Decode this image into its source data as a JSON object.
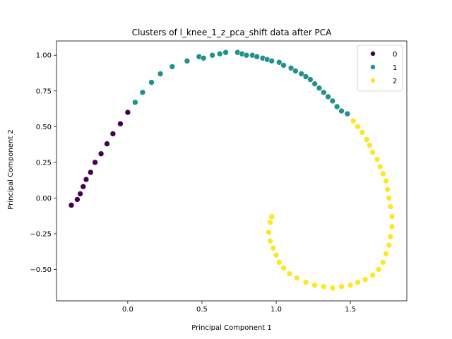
{
  "chart_data": {
    "type": "scatter",
    "title": "Clusters of l_knee_1_z_pca_shift data after PCA",
    "xlabel": "Principal Component 1",
    "ylabel": "Principal Component 2",
    "xlim": [
      -0.48,
      1.88
    ],
    "ylim": [
      -0.72,
      1.1
    ],
    "xticks": [
      0.0,
      0.5,
      1.0,
      1.5
    ],
    "xtick_labels": [
      "0.0",
      "0.5",
      "1.0",
      "1.5"
    ],
    "yticks": [
      -0.5,
      -0.25,
      0.0,
      0.25,
      0.5,
      0.75,
      1.0
    ],
    "ytick_labels": [
      "−0.50",
      "−0.25",
      "0.00",
      "0.25",
      "0.50",
      "0.75",
      "1.00"
    ],
    "grid": false,
    "legend_position": "top-right",
    "series": [
      {
        "name": "0",
        "color": "#440154",
        "points": [
          [
            -0.38,
            -0.05
          ],
          [
            -0.34,
            -0.01
          ],
          [
            -0.32,
            0.03
          ],
          [
            -0.3,
            0.08
          ],
          [
            -0.28,
            0.13
          ],
          [
            -0.25,
            0.18
          ],
          [
            -0.22,
            0.25
          ],
          [
            -0.18,
            0.31
          ],
          [
            -0.14,
            0.38
          ],
          [
            -0.1,
            0.45
          ],
          [
            -0.05,
            0.52
          ],
          [
            0.0,
            0.6
          ]
        ]
      },
      {
        "name": "1",
        "color": "#21918c",
        "points": [
          [
            0.05,
            0.67
          ],
          [
            0.1,
            0.74
          ],
          [
            0.16,
            0.81
          ],
          [
            0.22,
            0.87
          ],
          [
            0.3,
            0.92
          ],
          [
            0.4,
            0.96
          ],
          [
            0.48,
            0.99
          ],
          [
            0.51,
            0.98
          ],
          [
            0.57,
            1.0
          ],
          [
            0.62,
            1.01
          ],
          [
            0.66,
            1.02
          ],
          [
            0.74,
            1.02
          ],
          [
            0.77,
            1.01
          ],
          [
            0.8,
            1.0
          ],
          [
            0.84,
            1.0
          ],
          [
            0.87,
            0.99
          ],
          [
            0.91,
            0.98
          ],
          [
            0.94,
            0.97
          ],
          [
            0.97,
            0.96
          ],
          [
            1.02,
            0.95
          ],
          [
            1.05,
            0.93
          ],
          [
            1.1,
            0.91
          ],
          [
            1.13,
            0.89
          ],
          [
            1.17,
            0.87
          ],
          [
            1.2,
            0.85
          ],
          [
            1.23,
            0.83
          ],
          [
            1.26,
            0.8
          ],
          [
            1.29,
            0.77
          ],
          [
            1.32,
            0.74
          ],
          [
            1.35,
            0.71
          ],
          [
            1.38,
            0.68
          ],
          [
            1.41,
            0.64
          ],
          [
            1.44,
            0.61
          ],
          [
            1.48,
            0.59
          ]
        ]
      },
      {
        "name": "2",
        "color": "#fde725",
        "points": [
          [
            1.52,
            0.54
          ],
          [
            1.55,
            0.5
          ],
          [
            1.58,
            0.46
          ],
          [
            1.61,
            0.41
          ],
          [
            1.63,
            0.37
          ],
          [
            1.65,
            0.32
          ],
          [
            1.68,
            0.27
          ],
          [
            1.7,
            0.22
          ],
          [
            1.72,
            0.17
          ],
          [
            1.74,
            0.12
          ],
          [
            1.75,
            0.06
          ],
          [
            1.76,
            0.0
          ],
          [
            1.77,
            -0.06
          ],
          [
            1.78,
            -0.13
          ],
          [
            1.78,
            -0.2
          ],
          [
            1.77,
            -0.27
          ],
          [
            1.76,
            -0.33
          ],
          [
            1.74,
            -0.39
          ],
          [
            1.72,
            -0.45
          ],
          [
            1.69,
            -0.5
          ],
          [
            1.65,
            -0.54
          ],
          [
            1.6,
            -0.57
          ],
          [
            1.55,
            -0.59
          ],
          [
            1.5,
            -0.61
          ],
          [
            1.44,
            -0.62
          ],
          [
            1.38,
            -0.63
          ],
          [
            1.32,
            -0.62
          ],
          [
            1.26,
            -0.61
          ],
          [
            1.2,
            -0.59
          ],
          [
            1.14,
            -0.56
          ],
          [
            1.09,
            -0.53
          ],
          [
            1.05,
            -0.49
          ],
          [
            1.02,
            -0.45
          ],
          [
            1.0,
            -0.4
          ],
          [
            0.98,
            -0.35
          ],
          [
            0.96,
            -0.3
          ],
          [
            0.95,
            -0.24
          ],
          [
            0.96,
            -0.17
          ],
          [
            0.97,
            -0.13
          ]
        ]
      }
    ]
  }
}
